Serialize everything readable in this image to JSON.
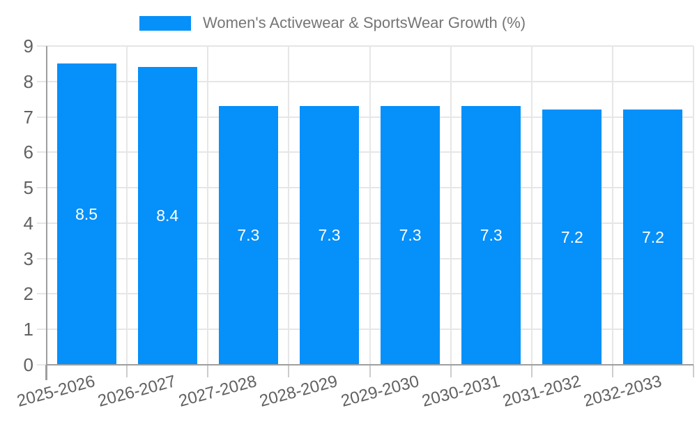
{
  "legend": {
    "position": "top",
    "label": "Women's Activewear & SportsWear Growth (%)"
  },
  "colors": {
    "bar": "#0590fa",
    "grid": "#e6e6e6",
    "axis": "#9e9e9e",
    "tick_label": "#616161",
    "title": "#757575",
    "bar_label": "#ffffff",
    "background": "#ffffff"
  },
  "chart_data": {
    "type": "bar",
    "title": "Women's Activewear & SportsWear Growth (%)",
    "categories": [
      "2025-2026",
      "2026-2027",
      "2027-2028",
      "2028-2029",
      "2029-2030",
      "2030-2031",
      "2031-2032",
      "2032-2033"
    ],
    "values": [
      8.5,
      8.4,
      7.3,
      7.3,
      7.3,
      7.3,
      7.2,
      7.2
    ],
    "bar_labels": [
      "8.5",
      "8.4",
      "7.3",
      "7.3",
      "7.3",
      "7.3",
      "7.2",
      "7.2"
    ],
    "xlabel": "",
    "ylabel": "",
    "ylim": [
      0,
      9
    ],
    "yticks": [
      0,
      1,
      2,
      3,
      4,
      5,
      6,
      7,
      8,
      9
    ],
    "grid": true,
    "legend_position": "top",
    "data_labels_inside": true,
    "x_label_rotation_deg": -15
  }
}
